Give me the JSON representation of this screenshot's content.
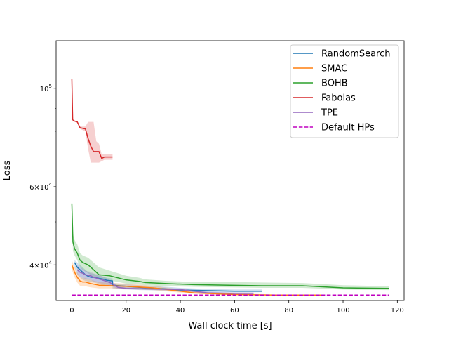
{
  "chart_data": {
    "type": "line",
    "xlabel": "Wall clock time [s]",
    "ylabel": "Loss",
    "xlim": [
      -5.8,
      122.5
    ],
    "ylim": [
      33250,
      128000
    ],
    "yscale": "log",
    "xticks": [
      0,
      20,
      40,
      60,
      80,
      100,
      120
    ],
    "xtick_labels": [
      "0",
      "20",
      "40",
      "60",
      "80",
      "100",
      "120"
    ],
    "yticks_major": [
      40000,
      60000,
      100000
    ],
    "ytick_labels": [
      {
        "coef": "4",
        "exp": "4"
      },
      {
        "coef": "6",
        "exp": "4"
      },
      {
        "coef": "",
        "exp": "5"
      }
    ],
    "yticks_minor": [
      50000,
      70000,
      80000,
      90000
    ],
    "legend_position": "top-right",
    "grid": false,
    "series": [
      {
        "name": "RandomSearch",
        "color": "#1f77b4",
        "style": "solid",
        "x": [
          1,
          2,
          3,
          4,
          5,
          6,
          7,
          8,
          9,
          10,
          12,
          13,
          15,
          15,
          25,
          35,
          40,
          50,
          60,
          70
        ],
        "y": [
          40500,
          39500,
          39000,
          38500,
          38000,
          37700,
          37500,
          37500,
          37400,
          37300,
          37100,
          36900,
          36800,
          36000,
          35600,
          35300,
          35100,
          35000,
          34900,
          34900
        ],
        "band_low": [
          39500,
          38000,
          37500,
          37000,
          36800,
          36700,
          36600,
          36500,
          36400,
          36200,
          36000,
          35800,
          35800,
          35400,
          35100,
          35000,
          34800,
          34700,
          34700,
          34700
        ],
        "band_high": [
          41000,
          40500,
          40000,
          39500,
          39000,
          38500,
          38300,
          38200,
          38000,
          37800,
          37600,
          37400,
          37300,
          36400,
          36000,
          35700,
          35500,
          35300,
          35200,
          35200
        ]
      },
      {
        "name": "SMAC",
        "color": "#ff7f0e",
        "style": "solid",
        "x": [
          0,
          1,
          2,
          3,
          4,
          5,
          7,
          10,
          15,
          20,
          30,
          45,
          60,
          75,
          92
        ],
        "y": [
          40000,
          38500,
          37500,
          36800,
          36600,
          36600,
          36300,
          36000,
          35900,
          35800,
          35500,
          34600,
          34300,
          34200,
          34200
        ],
        "band_low": [
          39000,
          37500,
          36500,
          35900,
          35800,
          35800,
          35600,
          35400,
          35400,
          35300,
          35100,
          34400,
          34200,
          34100,
          34100
        ],
        "band_high": [
          41000,
          39500,
          38500,
          37600,
          37400,
          37400,
          37000,
          36600,
          36400,
          36300,
          35900,
          34900,
          34500,
          34300,
          34300
        ]
      },
      {
        "name": "BOHB",
        "color": "#2ca02c",
        "style": "solid",
        "x": [
          0,
          0.4,
          1,
          2,
          3,
          4,
          6,
          8,
          10,
          14,
          20,
          25,
          27,
          35,
          45,
          58,
          70,
          85,
          100,
          117
        ],
        "y": [
          55000,
          45000,
          43500,
          42500,
          41000,
          40500,
          40000,
          39000,
          38000,
          37800,
          37000,
          36700,
          36500,
          36300,
          36100,
          36000,
          35900,
          35900,
          35500,
          35400
        ],
        "band_low": [
          52000,
          43000,
          42000,
          41000,
          39500,
          39000,
          38300,
          37600,
          37000,
          36900,
          36300,
          36100,
          36000,
          35800,
          35700,
          35600,
          35500,
          35500,
          35200,
          35100
        ],
        "band_high": [
          58000,
          47000,
          45500,
          44500,
          42500,
          42000,
          41500,
          40500,
          39500,
          38800,
          37800,
          37400,
          37100,
          36800,
          36600,
          36600,
          36500,
          36400,
          36000,
          35800
        ]
      },
      {
        "name": "Fabolas",
        "color": "#d62728",
        "style": "solid",
        "x": [
          0,
          0.3,
          0.6,
          2,
          3,
          5,
          6,
          7,
          8,
          9,
          10,
          11,
          12,
          15
        ],
        "y": [
          105000,
          85000,
          84500,
          84000,
          81500,
          81000,
          77000,
          74000,
          72000,
          72000,
          72000,
          69500,
          70000,
          70000
        ],
        "band_low": [
          105000,
          85000,
          84500,
          84000,
          81000,
          80000,
          73000,
          68000,
          68000,
          68000,
          68000,
          68500,
          69000,
          69000
        ],
        "band_high": [
          105000,
          85000,
          84500,
          84000,
          82000,
          82000,
          84000,
          84000,
          84000,
          76000,
          75000,
          71000,
          71000,
          71000
        ]
      },
      {
        "name": "TPE",
        "color": "#9467bd",
        "style": "solid",
        "x": [
          2,
          3,
          4,
          5,
          7,
          8,
          10,
          14,
          17,
          20,
          30,
          40,
          50,
          60,
          67
        ],
        "y": [
          39000,
          38500,
          38300,
          38000,
          37800,
          37500,
          37200,
          36500,
          35600,
          35400,
          35300,
          35200,
          34600,
          34500,
          34500
        ],
        "band_low": [
          38000,
          37600,
          37400,
          37200,
          37000,
          36700,
          36400,
          36000,
          35300,
          35200,
          35100,
          35000,
          34400,
          34300,
          34300
        ],
        "band_high": [
          40000,
          39500,
          39200,
          38800,
          38600,
          38300,
          38000,
          37000,
          35900,
          35600,
          35500,
          35400,
          34800,
          34700,
          34700
        ]
      },
      {
        "name": "Default HPs",
        "color": "#bf00bf",
        "style": "dashed",
        "x": [
          0,
          117
        ],
        "y": [
          34200,
          34200
        ]
      }
    ]
  }
}
